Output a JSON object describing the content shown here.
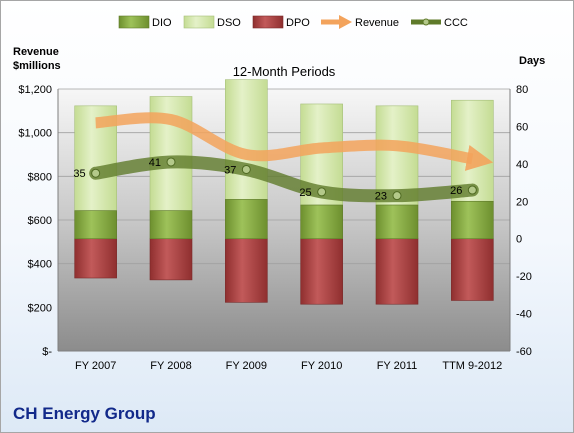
{
  "chart_data": {
    "type": "bar",
    "title": "12-Month Periods",
    "categories": [
      "FY 2007",
      "FY 2008",
      "FY 2009",
      "FY 2010",
      "FY 2011",
      "TTM 9-2012"
    ],
    "left_axis": {
      "label_line1": "Revenue",
      "label_line2": "$millions",
      "ylim": [
        0,
        1200
      ],
      "ticks": [
        "$-",
        "$200",
        "$400",
        "$600",
        "$800",
        "$1,000",
        "$1,200"
      ]
    },
    "right_axis": {
      "label": "Days",
      "ylim": [
        -60,
        80
      ],
      "ticks": [
        "-60",
        "-40",
        "-20",
        "0",
        "20",
        "40",
        "60",
        "80"
      ]
    },
    "series": [
      {
        "name": "DIO",
        "axis": "right",
        "values": [
          15,
          15,
          21,
          18,
          18,
          20
        ]
      },
      {
        "name": "DSO",
        "axis": "right",
        "values": [
          56,
          61,
          64,
          54,
          53,
          54
        ]
      },
      {
        "name": "DPO",
        "axis": "right",
        "values": [
          -21,
          -22,
          -34,
          -35,
          -35,
          -33
        ]
      },
      {
        "name": "Revenue",
        "axis": "left",
        "values": [
          1045,
          1060,
          900,
          930,
          940,
          880
        ]
      },
      {
        "name": "CCC",
        "axis": "right",
        "values": [
          35,
          41,
          37,
          25,
          23,
          26
        ]
      }
    ],
    "data_labels": [
      "35",
      "41",
      "37",
      "25",
      "23",
      "26"
    ],
    "colors": {
      "DIO": "#8fb34a",
      "DSO": "#d6e9b0",
      "DPO": "#b34a4a",
      "Revenue": "#f3a35c",
      "CCC": "#5f7a2a"
    },
    "legend_position": "top",
    "company": "CH Energy Group"
  }
}
